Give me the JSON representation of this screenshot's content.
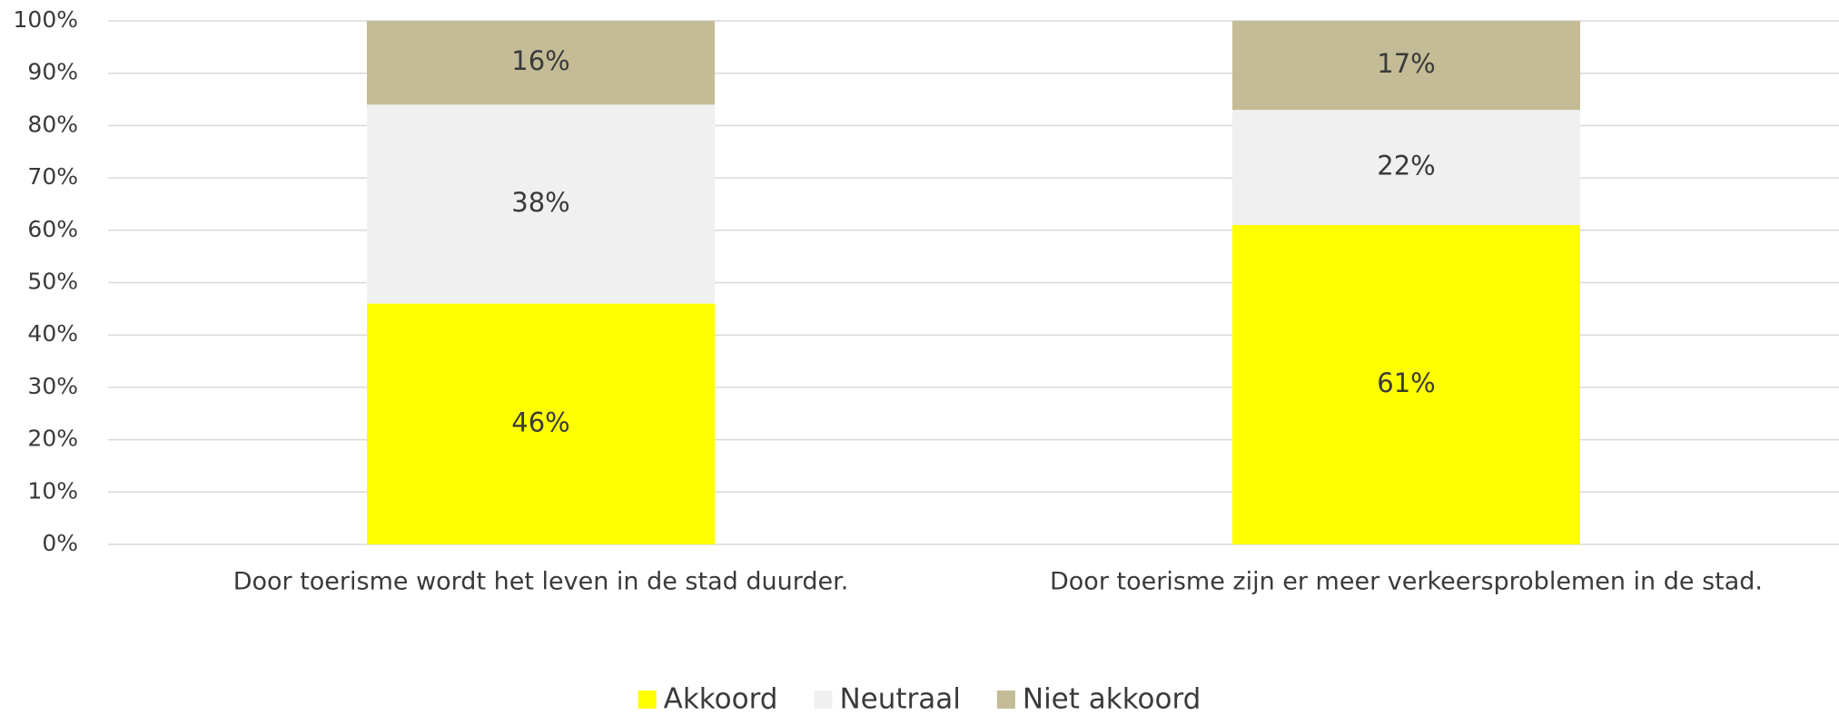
{
  "chart_data": {
    "type": "bar",
    "stacked": true,
    "categories": [
      "Door toerisme wordt het leven in de stad duurder.",
      "Door toerisme zijn er meer verkeersproblemen in de stad."
    ],
    "series": [
      {
        "name": "Akkoord",
        "color": "#ffff00",
        "values": [
          46,
          61
        ],
        "value_labels": [
          "46%",
          "61%"
        ]
      },
      {
        "name": "Neutraal",
        "color": "#f0f0f0",
        "values": [
          38,
          22
        ],
        "value_labels": [
          "38%",
          "22%"
        ]
      },
      {
        "name": "Niet akkoord",
        "color": "#c4bc96",
        "values": [
          16,
          17
        ],
        "value_labels": [
          "16%",
          "17%"
        ]
      }
    ],
    "ylim": [
      0,
      100
    ],
    "yticks": [
      {
        "value": 0,
        "label": "0%"
      },
      {
        "value": 10,
        "label": "10%"
      },
      {
        "value": 20,
        "label": "20%"
      },
      {
        "value": 30,
        "label": "30%"
      },
      {
        "value": 40,
        "label": "40%"
      },
      {
        "value": 50,
        "label": "50%"
      },
      {
        "value": 60,
        "label": "60%"
      },
      {
        "value": 70,
        "label": "70%"
      },
      {
        "value": 80,
        "label": "80%"
      },
      {
        "value": 90,
        "label": "90%"
      },
      {
        "value": 100,
        "label": "100%"
      }
    ],
    "grid": true,
    "legend": "bottom"
  }
}
